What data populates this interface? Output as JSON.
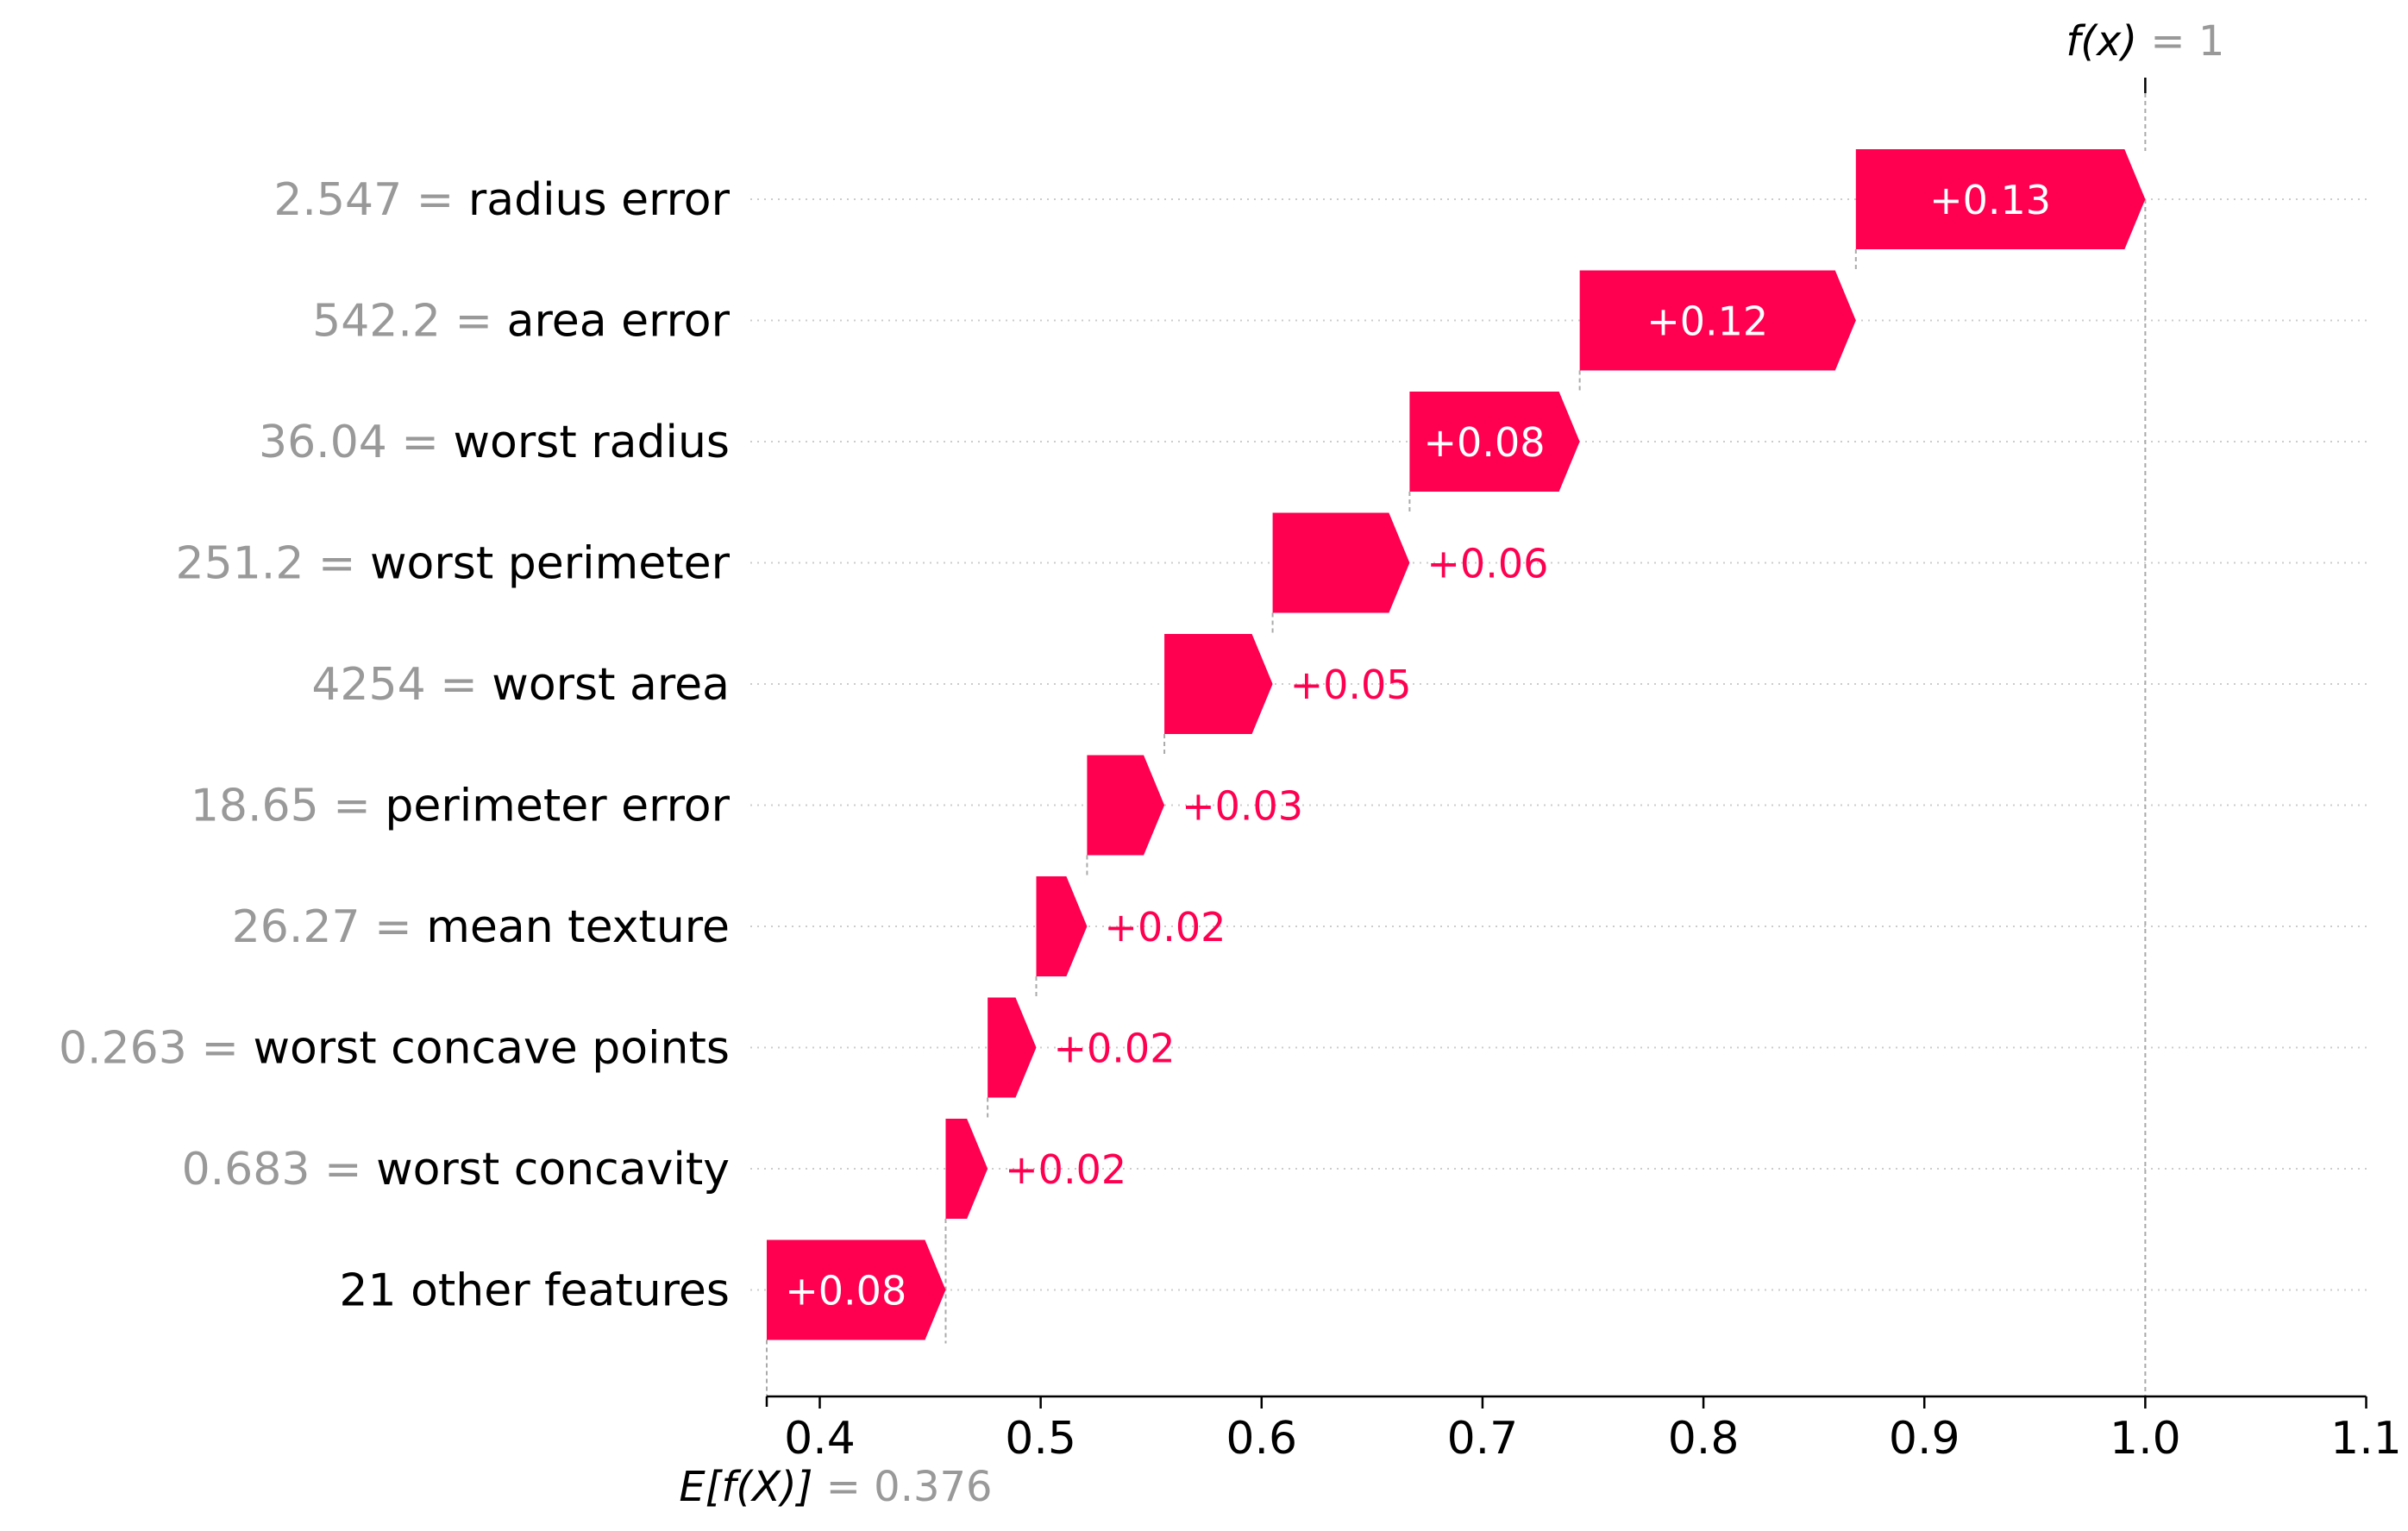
{
  "chart_data": {
    "type": "waterfall",
    "base_value": 0.376,
    "output_value": 1,
    "base_label": "E[f(X)]",
    "base_value_text": "= 0.376",
    "output_label": "f(x)",
    "output_value_text": "= 1",
    "x_ticks": [
      0.4,
      0.5,
      0.6,
      0.7,
      0.8,
      0.9,
      1.0,
      1.1
    ],
    "x_tick_labels": [
      "0.4",
      "0.5",
      "0.6",
      "0.7",
      "0.8",
      "0.9",
      "1.0",
      "1.1"
    ],
    "xlim": [
      0.376,
      1.1
    ],
    "positive_color": "#ff0051",
    "features": [
      {
        "value": "2.547",
        "name": "radius error",
        "start": 0.869,
        "end": 1.0,
        "label": "+0.13"
      },
      {
        "value": "542.2",
        "name": "area error",
        "start": 0.744,
        "end": 0.869,
        "label": "+0.12"
      },
      {
        "value": "36.04",
        "name": "worst radius",
        "start": 0.667,
        "end": 0.744,
        "label": "+0.08"
      },
      {
        "value": "251.2",
        "name": "worst perimeter",
        "start": 0.605,
        "end": 0.667,
        "label": "+0.06"
      },
      {
        "value": "4254",
        "name": "worst area",
        "start": 0.556,
        "end": 0.605,
        "label": "+0.05"
      },
      {
        "value": "18.65",
        "name": "perimeter error",
        "start": 0.521,
        "end": 0.556,
        "label": "+0.03"
      },
      {
        "value": "26.27",
        "name": "mean texture",
        "start": 0.498,
        "end": 0.521,
        "label": "+0.02"
      },
      {
        "value": "0.263",
        "name": "worst concave points",
        "start": 0.476,
        "end": 0.498,
        "label": "+0.02"
      },
      {
        "value": "0.683",
        "name": "worst concavity",
        "start": 0.457,
        "end": 0.476,
        "label": "+0.02"
      },
      {
        "value": "",
        "name": "21 other features",
        "start": 0.376,
        "end": 0.457,
        "label": "+0.08"
      }
    ]
  }
}
